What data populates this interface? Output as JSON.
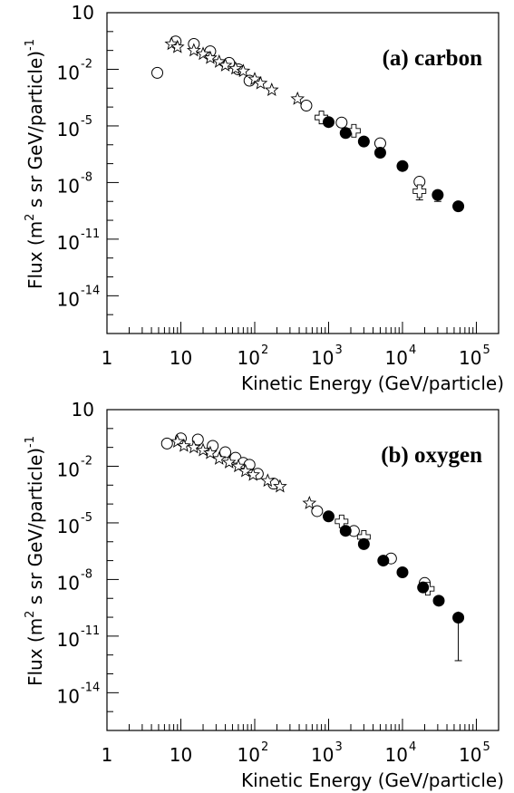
{
  "chart_data": [
    {
      "type": "scatter",
      "title": "(a) carbon",
      "xlabel": "Kinetic Energy (GeV/particle)",
      "ylabel_parts": [
        "Flux (m",
        "2",
        " s sr GeV/particle)",
        "-1"
      ],
      "xscale": "log",
      "yscale": "log",
      "xlim": [
        1,
        200000
      ],
      "ylim": [
        1e-16,
        10
      ],
      "x_ticks": [
        {
          "value": 1,
          "base": "1",
          "exp": ""
        },
        {
          "value": 10,
          "base": "10",
          "exp": ""
        },
        {
          "value": 100,
          "base": "10",
          "exp": "2"
        },
        {
          "value": 1000,
          "base": "10",
          "exp": "3"
        },
        {
          "value": 10000,
          "base": "10",
          "exp": "4"
        },
        {
          "value": 100000,
          "base": "10",
          "exp": "5"
        }
      ],
      "y_ticks": [
        {
          "value": 10,
          "base": "10",
          "exp": ""
        },
        {
          "value": 0.01,
          "base": "10",
          "exp": "-2"
        },
        {
          "value": 1e-05,
          "base": "10",
          "exp": "-5"
        },
        {
          "value": 1e-08,
          "base": "10",
          "exp": "-8"
        },
        {
          "value": 1e-11,
          "base": "10",
          "exp": "-11"
        },
        {
          "value": 1e-14,
          "base": "10",
          "exp": "-14"
        }
      ],
      "grid": false,
      "legend": "none",
      "series": [
        {
          "marker": "open-circle",
          "x": [
            4.8,
            8.5,
            15,
            25,
            45,
            60,
            85,
            500,
            1500,
            5000,
            17000
          ],
          "y": [
            0.0065,
            0.3,
            0.22,
            0.09,
            0.022,
            0.01,
            0.0025,
            0.00012,
            1.5e-05,
            1.2e-06,
            1.1e-08
          ]
        },
        {
          "marker": "open-star",
          "x": [
            7.5,
            9,
            15,
            20,
            25,
            33,
            40,
            55,
            70,
            100,
            120,
            170,
            380
          ],
          "y": [
            0.22,
            0.15,
            0.1,
            0.065,
            0.04,
            0.025,
            0.016,
            0.011,
            0.008,
            0.003,
            0.0018,
            0.0008,
            0.00027
          ]
        },
        {
          "marker": "open-cross",
          "x": [
            800,
            2200,
            17000
          ],
          "y": [
            2.8e-05,
            5.5e-06,
            3.5e-09
          ]
        },
        {
          "marker": "filled-circle",
          "x": [
            1000,
            1700,
            3000,
            5000,
            10000,
            30000,
            57000
          ],
          "y": [
            1.6e-05,
            4.2e-06,
            1.5e-06,
            3.8e-07,
            7.5e-08,
            2.2e-09,
            5.5e-10
          ]
        }
      ],
      "error_bars": [
        {
          "x": 17000,
          "low": 1.2e-09,
          "high": 4.5e-09
        },
        {
          "x": 30000,
          "low": 1e-09,
          "high": 3e-09
        }
      ]
    },
    {
      "type": "scatter",
      "title": "(b) oxygen",
      "xlabel": "Kinetic Energy (GeV/particle)",
      "ylabel_parts": [
        "Flux (m",
        "2",
        " s sr GeV/particle)",
        "-1"
      ],
      "xscale": "log",
      "yscale": "log",
      "xlim": [
        1,
        200000
      ],
      "ylim": [
        1e-16,
        10
      ],
      "x_ticks": [
        {
          "value": 1,
          "base": "1",
          "exp": ""
        },
        {
          "value": 10,
          "base": "10",
          "exp": ""
        },
        {
          "value": 100,
          "base": "10",
          "exp": "2"
        },
        {
          "value": 1000,
          "base": "10",
          "exp": "3"
        },
        {
          "value": 10000,
          "base": "10",
          "exp": "4"
        },
        {
          "value": 100000,
          "base": "10",
          "exp": "5"
        }
      ],
      "y_ticks": [
        {
          "value": 10,
          "base": "10",
          "exp": ""
        },
        {
          "value": 0.01,
          "base": "10",
          "exp": "-2"
        },
        {
          "value": 1e-05,
          "base": "10",
          "exp": "-5"
        },
        {
          "value": 1e-08,
          "base": "10",
          "exp": "-8"
        },
        {
          "value": 1e-11,
          "base": "10",
          "exp": "-11"
        },
        {
          "value": 1e-14,
          "base": "10",
          "exp": "-14"
        }
      ],
      "grid": false,
      "legend": "none",
      "series": [
        {
          "marker": "open-circle",
          "x": [
            6.5,
            10,
            17,
            27,
            40,
            55,
            70,
            85,
            110,
            180,
            700,
            2200,
            7000,
            20000
          ],
          "y": [
            0.16,
            0.3,
            0.26,
            0.12,
            0.055,
            0.028,
            0.015,
            0.012,
            0.004,
            0.0012,
            4.2e-05,
            3.7e-06,
            1.3e-07,
            6.5e-09
          ]
        },
        {
          "marker": "open-star",
          "x": [
            9,
            11,
            15,
            20,
            25,
            33,
            45,
            60,
            75,
            95,
            150,
            220,
            550
          ],
          "y": [
            0.2,
            0.12,
            0.1,
            0.07,
            0.05,
            0.025,
            0.016,
            0.01,
            0.0055,
            0.0035,
            0.0017,
            0.00085,
            0.00011
          ]
        },
        {
          "marker": "open-cross",
          "x": [
            1500,
            3000,
            22000
          ],
          "y": [
            1.2e-05,
            1.8e-06,
            3.2e-09
          ]
        },
        {
          "marker": "filled-circle",
          "x": [
            1000,
            1700,
            3000,
            5500,
            10000,
            19000,
            31000,
            57000
          ],
          "y": [
            2.2e-05,
            3.8e-06,
            7.5e-07,
            1e-07,
            2.4e-08,
            3.8e-09,
            7.5e-10,
            9.5e-11
          ]
        }
      ],
      "error_bars": [
        {
          "x": 19000,
          "low": 2.5e-09,
          "high": 5e-09
        },
        {
          "x": 57000,
          "low": 5e-13,
          "high": 2e-10
        }
      ]
    }
  ]
}
